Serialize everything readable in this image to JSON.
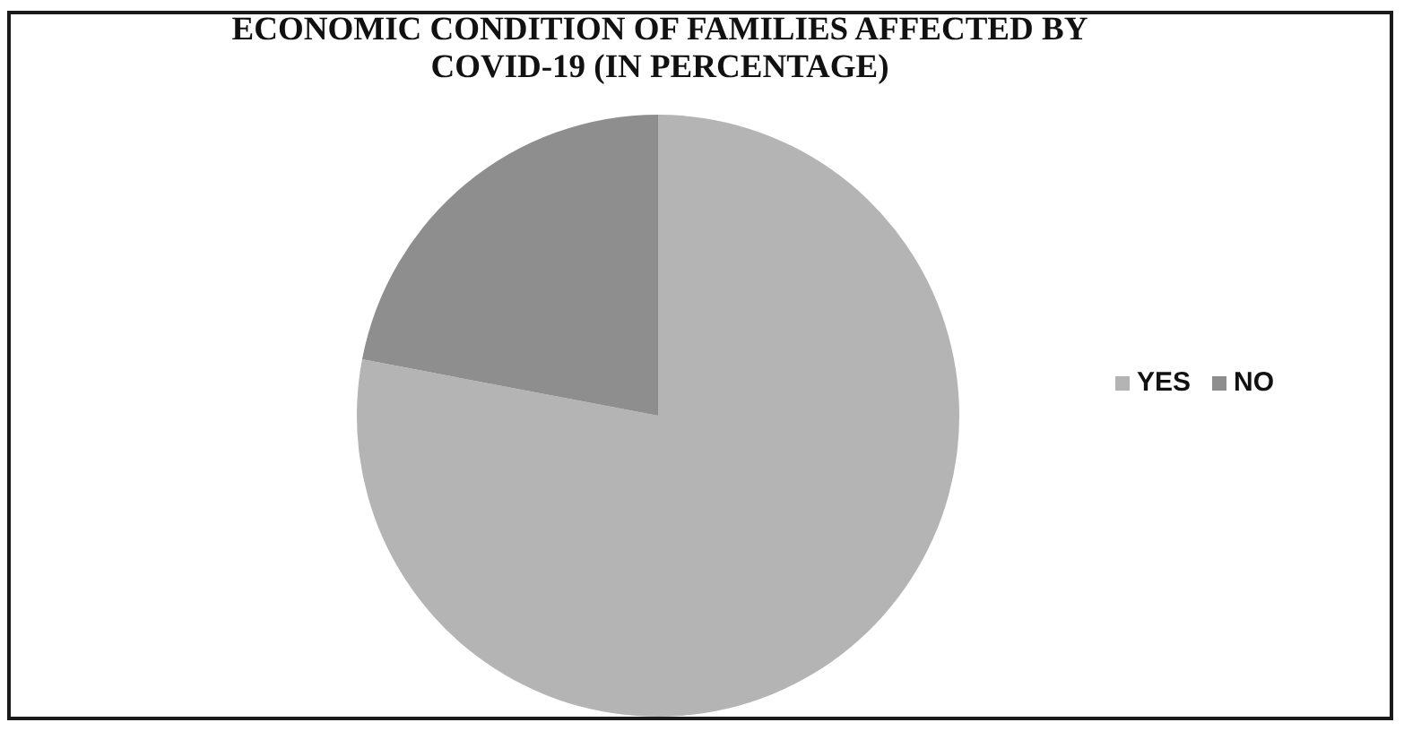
{
  "chart_data": {
    "type": "pie",
    "title": "ECONOMIC CONDITION OF FAMILIES AFFECTED BY COVID-19 (IN PERCENTAGE)",
    "categories": [
      "YES",
      "NO"
    ],
    "values": [
      78,
      22
    ],
    "colors": [
      "#b4b4b4",
      "#8e8e8e"
    ],
    "legend": "right"
  }
}
